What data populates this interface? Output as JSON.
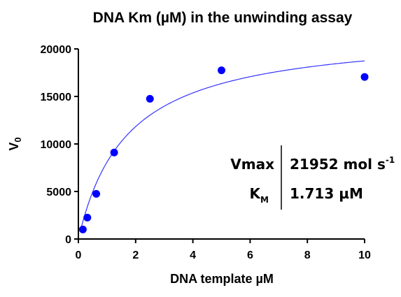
{
  "chart_data": {
    "type": "scatter",
    "title": "DNA Km (µM) in the unwinding assay",
    "xlabel": "DNA template µM",
    "ylabel_main": "V",
    "ylabel_sub": "0",
    "xlim": [
      0,
      10
    ],
    "ylim": [
      0,
      20000
    ],
    "x_ticks": [
      "0",
      "2",
      "4",
      "6",
      "8",
      "10"
    ],
    "x_tick_values": [
      0,
      2,
      4,
      6,
      8,
      10
    ],
    "y_ticks": [
      "0",
      "5000",
      "10000",
      "15000",
      "20000"
    ],
    "y_tick_values": [
      0,
      5000,
      10000,
      15000,
      20000
    ],
    "points": [
      {
        "x": 0.156,
        "y": 1000
      },
      {
        "x": 0.3125,
        "y": 2250
      },
      {
        "x": 0.625,
        "y": 4750
      },
      {
        "x": 1.25,
        "y": 9100
      },
      {
        "x": 2.5,
        "y": 14750
      },
      {
        "x": 5,
        "y": 17750
      },
      {
        "x": 10,
        "y": 17050
      }
    ],
    "fit": {
      "model": "michaelis-menten",
      "vmax": 21952,
      "km": 1.713
    },
    "point_color": "#0000ff",
    "fit_color": "#3333ff",
    "grid": false,
    "legend": "none"
  },
  "params": {
    "vmax_label": "Vmax",
    "vmax_value": "21952 mol s",
    "vmax_unit_sup": "-1",
    "km_label_main": "K",
    "km_label_sub": "M",
    "km_value": "1.713 µM"
  }
}
